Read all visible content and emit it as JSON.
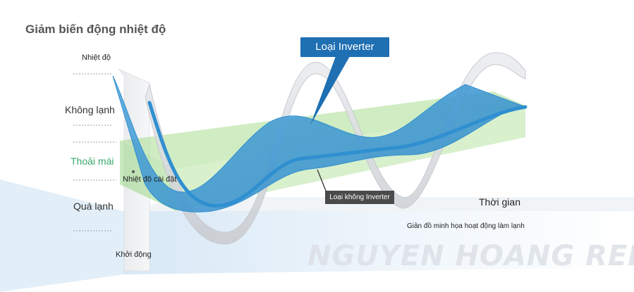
{
  "title": "Giảm biến động nhiệt độ",
  "y_axis_label": "Nhiệt độ",
  "levels": {
    "hot": "Không lạnh",
    "comfort": "Thoải mái",
    "cold": "Quá lạnh"
  },
  "setpoint_label": "Nhiệt độ cài đặt",
  "startup_label": "Khởi động",
  "x_axis_label": "Thời gian",
  "caption": "Giản đồ minh họa hoạt động làm lạnh",
  "callouts": {
    "inverter": "Loại Inverter",
    "non_inverter": "Loại không Inverter"
  },
  "watermark": "NGUYEN HOANG REE",
  "colors": {
    "inverter_blue": "#2f8fd0",
    "callout_blue": "#1f6fb3",
    "comfort_green": "#39a86a",
    "comfort_band": "#9fd98a",
    "non_inverter_gray": "#d4d7dc",
    "callout_gray": "#4a4a4a"
  }
}
